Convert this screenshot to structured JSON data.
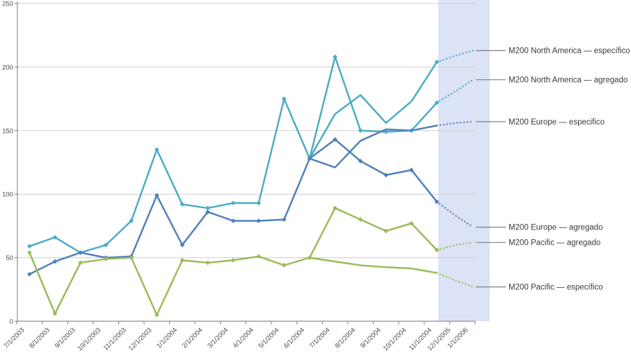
{
  "chart_style": {
    "background_color": "#FFFFFF",
    "forecast_band_color": "#DDE3F6",
    "gridline_color": "#CDCDCD",
    "axis_color": "#8E8E8E",
    "tick_label_color": "#4A4A4A",
    "annotation_text_color": "#3A3A3A",
    "leader_line_color": "#7F7F7F",
    "series_colors": {
      "north_america": "#4BACC6",
      "europe": "#4F81BD",
      "pacific": "#9BBB59"
    }
  },
  "chart_data": {
    "type": "line",
    "title": "",
    "xlabel": "",
    "ylabel": "",
    "ylim": [
      0,
      250
    ],
    "yticks": [
      0,
      50,
      100,
      150,
      200,
      250
    ],
    "grid": "horizontal",
    "legend_position": "right-annotations",
    "forecast_start_label": "11/1/2004",
    "x": [
      "7/1/2003",
      "8/1/2003",
      "9/1/2003",
      "10/1/2003",
      "11/1/2003",
      "12/1/2003",
      "1/1/2004",
      "2/1/2004",
      "3/1/2004",
      "4/1/2004",
      "5/1/2004",
      "6/1/2004",
      "7/1/2004",
      "8/1/2004",
      "9/1/2004",
      "10/1/2004",
      "11/1/2004",
      "12/1/2005",
      "1/1/2006"
    ],
    "series": [
      {
        "name": "M200 North America — específico",
        "region": "north_america",
        "color": "#4BACC6",
        "start_index": 11,
        "values": [
          128,
          163,
          178,
          156,
          173,
          204
        ],
        "forecast_values": [
          209,
          213
        ],
        "markers": false,
        "end_marker": true
      },
      {
        "name": "M200 North America — agregado",
        "region": "north_america",
        "color": "#4BACC6",
        "start_index": 0,
        "values": [
          59,
          66,
          54,
          60,
          79,
          135,
          92,
          89,
          93,
          93,
          175,
          128,
          208,
          150,
          149,
          150,
          172
        ],
        "forecast_values": [
          181,
          190
        ],
        "markers": true,
        "end_marker": false
      },
      {
        "name": "M200 Europe — especifico",
        "region": "europe",
        "color": "#4F81BD",
        "start_index": 11,
        "values": [
          128,
          121,
          142,
          151,
          150,
          154
        ],
        "forecast_values": [
          156,
          157
        ],
        "markers": false,
        "end_marker": false
      },
      {
        "name": "M200 Europe — agregado",
        "region": "europe",
        "color": "#4F81BD",
        "start_index": 0,
        "values": [
          37,
          47,
          54,
          50,
          51,
          99,
          60,
          86,
          79,
          79,
          80,
          128,
          143,
          126,
          115,
          119,
          94
        ],
        "forecast_values": [
          83,
          74
        ],
        "markers": true,
        "end_marker": false
      },
      {
        "name": "M200 Pacific — agregado",
        "region": "pacific",
        "color": "#9BBB59",
        "start_index": 0,
        "values": [
          54,
          6,
          46,
          49,
          50,
          5,
          48,
          46,
          48,
          51,
          44,
          50,
          89,
          80,
          71,
          77,
          56
        ],
        "forecast_values": [
          60,
          62
        ],
        "markers": true,
        "end_marker": false
      },
      {
        "name": "M200 Pacific — específico",
        "region": "pacific",
        "color": "#9BBB59",
        "start_index": 11,
        "values": [
          50,
          47,
          44,
          42.5,
          41.5,
          38
        ],
        "forecast_values": [
          32,
          27
        ],
        "markers": false,
        "end_marker": false
      }
    ]
  }
}
